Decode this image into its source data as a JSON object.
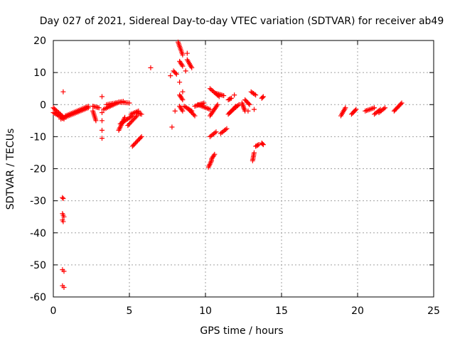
{
  "chart_data": {
    "type": "scatter",
    "title": "Day 027 of 2021, Sidereal Day-to-day VTEC variation (SDTVAR) for receiver ab49",
    "xlabel": "GPS time / hours",
    "ylabel": "SDTVAR / TECUs",
    "xlim": [
      0,
      25
    ],
    "ylim": [
      -60,
      20
    ],
    "xticks": [
      0,
      5,
      10,
      15,
      20,
      25
    ],
    "yticks": [
      -60,
      -50,
      -40,
      -30,
      -20,
      -10,
      0,
      10,
      20
    ],
    "grid": true,
    "marker": "+",
    "colors": {
      "points": "#ff0000",
      "grid": "#a0a0a0",
      "axes": "#000000",
      "background": "#ffffff"
    },
    "series": [
      {
        "name": "SDTVAR",
        "segments": [
          {
            "x": [
              0.0,
              0.7
            ],
            "y": [
              -1.0,
              -4.0
            ]
          },
          {
            "x": [
              0.0,
              0.7
            ],
            "y": [
              -2.5,
              -4.5
            ]
          },
          {
            "x": [
              0.5,
              2.3
            ],
            "y": [
              -4.5,
              -1.0
            ]
          },
          {
            "x": [
              0.8,
              2.3
            ],
            "y": [
              -3.5,
              -0.5
            ]
          },
          {
            "x": [
              2.6,
              3.0
            ],
            "y": [
              -0.5,
              -1.0
            ]
          },
          {
            "x": [
              2.6,
              2.8
            ],
            "y": [
              -2.0,
              -5.0
            ]
          },
          {
            "x": [
              3.3,
              4.2
            ],
            "y": [
              -1.5,
              0.5
            ]
          },
          {
            "x": [
              3.5,
              4.6
            ],
            "y": [
              0.0,
              1.0
            ]
          },
          {
            "x": [
              4.3,
              5.0
            ],
            "y": [
              0.8,
              0.5
            ]
          },
          {
            "x": [
              4.3,
              4.7
            ],
            "y": [
              -8.0,
              -4.0
            ]
          },
          {
            "x": [
              4.4,
              5.2
            ],
            "y": [
              -6.0,
              -3.5
            ]
          },
          {
            "x": [
              4.9,
              5.5
            ],
            "y": [
              -6.5,
              -3.5
            ]
          },
          {
            "x": [
              5.1,
              5.6
            ],
            "y": [
              -3.0,
              -2.0
            ]
          },
          {
            "x": [
              5.5,
              5.8
            ],
            "y": [
              -2.5,
              -3.0
            ]
          },
          {
            "x": [
              5.2,
              5.8
            ],
            "y": [
              -13.0,
              -10.0
            ]
          },
          {
            "x": [
              8.2,
              8.5
            ],
            "y": [
              19.5,
              15.5
            ]
          },
          {
            "x": [
              8.8,
              9.1
            ],
            "y": [
              14.0,
              11.5
            ]
          },
          {
            "x": [
              8.3,
              8.5
            ],
            "y": [
              13.5,
              12.0
            ]
          },
          {
            "x": [
              7.9,
              8.1
            ],
            "y": [
              10.5,
              9.5
            ]
          },
          {
            "x": [
              8.3,
              8.5
            ],
            "y": [
              3.0,
              1.5
            ]
          },
          {
            "x": [
              8.3,
              8.5
            ],
            "y": [
              -0.5,
              -2.0
            ]
          },
          {
            "x": [
              8.6,
              9.1
            ],
            "y": [
              -0.5,
              -2.0
            ]
          },
          {
            "x": [
              8.9,
              9.3
            ],
            "y": [
              -1.5,
              -3.5
            ]
          },
          {
            "x": [
              9.3,
              9.9
            ],
            "y": [
              -0.5,
              0.5
            ]
          },
          {
            "x": [
              9.5,
              10.3
            ],
            "y": [
              0.0,
              -1.5
            ]
          },
          {
            "x": [
              10.3,
              10.9
            ],
            "y": [
              5.0,
              2.5
            ]
          },
          {
            "x": [
              10.7,
              11.2
            ],
            "y": [
              3.5,
              2.8
            ]
          },
          {
            "x": [
              10.3,
              10.8
            ],
            "y": [
              -3.5,
              0.0
            ]
          },
          {
            "x": [
              10.2,
              10.4
            ],
            "y": [
              -19.5,
              -17.5
            ]
          },
          {
            "x": [
              10.4,
              10.6
            ],
            "y": [
              -17.0,
              -15.5
            ]
          },
          {
            "x": [
              10.3,
              10.7
            ],
            "y": [
              -10.0,
              -8.5
            ]
          },
          {
            "x": [
              11.0,
              11.4
            ],
            "y": [
              -9.0,
              -7.5
            ]
          },
          {
            "x": [
              11.5,
              11.7
            ],
            "y": [
              1.5,
              2.0
            ]
          },
          {
            "x": [
              11.5,
              12.0
            ],
            "y": [
              -3.0,
              -0.5
            ]
          },
          {
            "x": [
              11.6,
              12.2
            ],
            "y": [
              -2.5,
              0.0
            ]
          },
          {
            "x": [
              12.4,
              12.6
            ],
            "y": [
              0.5,
              -2.0
            ]
          },
          {
            "x": [
              12.6,
              12.9
            ],
            "y": [
              1.5,
              0.0
            ]
          },
          {
            "x": [
              13.0,
              13.3
            ],
            "y": [
              4.0,
              3.0
            ]
          },
          {
            "x": [
              13.1,
              13.2
            ],
            "y": [
              -17.5,
              -15.0
            ]
          },
          {
            "x": [
              13.3,
              13.5
            ],
            "y": [
              -13.0,
              -12.5
            ]
          },
          {
            "x": [
              13.7,
              13.8
            ],
            "y": [
              -12.0,
              -12.5
            ]
          },
          {
            "x": [
              13.7,
              13.8
            ],
            "y": [
              2.0,
              2.5
            ]
          },
          {
            "x": [
              18.9,
              19.2
            ],
            "y": [
              -3.5,
              -1.0
            ]
          },
          {
            "x": [
              19.6,
              19.9
            ],
            "y": [
              -3.0,
              -1.5
            ]
          },
          {
            "x": [
              20.5,
              21.1
            ],
            "y": [
              -2.0,
              -1.0
            ]
          },
          {
            "x": [
              21.1,
              21.5
            ],
            "y": [
              -3.0,
              -1.5
            ]
          },
          {
            "x": [
              21.4,
              21.8
            ],
            "y": [
              -2.5,
              -1.0
            ]
          },
          {
            "x": [
              22.4,
              22.9
            ],
            "y": [
              -2.0,
              0.5
            ]
          }
        ],
        "points": [
          {
            "x": 0.65,
            "y": 4.0
          },
          {
            "x": 0.6,
            "y": -29.0
          },
          {
            "x": 0.65,
            "y": -29.3
          },
          {
            "x": 0.6,
            "y": -34.0
          },
          {
            "x": 0.65,
            "y": -34.5
          },
          {
            "x": 0.7,
            "y": -35.0
          },
          {
            "x": 0.6,
            "y": -36.0
          },
          {
            "x": 0.65,
            "y": -36.5
          },
          {
            "x": 0.6,
            "y": -51.5
          },
          {
            "x": 0.7,
            "y": -52.0
          },
          {
            "x": 0.6,
            "y": -56.5
          },
          {
            "x": 0.7,
            "y": -57.0
          },
          {
            "x": 3.2,
            "y": 2.5
          },
          {
            "x": 3.2,
            "y": -2.5
          },
          {
            "x": 3.2,
            "y": -5.0
          },
          {
            "x": 3.2,
            "y": -8.0
          },
          {
            "x": 3.2,
            "y": -10.5
          },
          {
            "x": 6.4,
            "y": 11.5
          },
          {
            "x": 7.7,
            "y": 9.0
          },
          {
            "x": 7.8,
            "y": -7.0
          },
          {
            "x": 8.0,
            "y": -2.0
          },
          {
            "x": 8.3,
            "y": 7.0
          },
          {
            "x": 8.5,
            "y": 4.0
          },
          {
            "x": 8.7,
            "y": 10.5
          },
          {
            "x": 8.8,
            "y": 16.0
          },
          {
            "x": 12.8,
            "y": -2.0
          },
          {
            "x": 13.2,
            "y": -1.5
          },
          {
            "x": 11.9,
            "y": 3.0
          }
        ]
      }
    ]
  }
}
